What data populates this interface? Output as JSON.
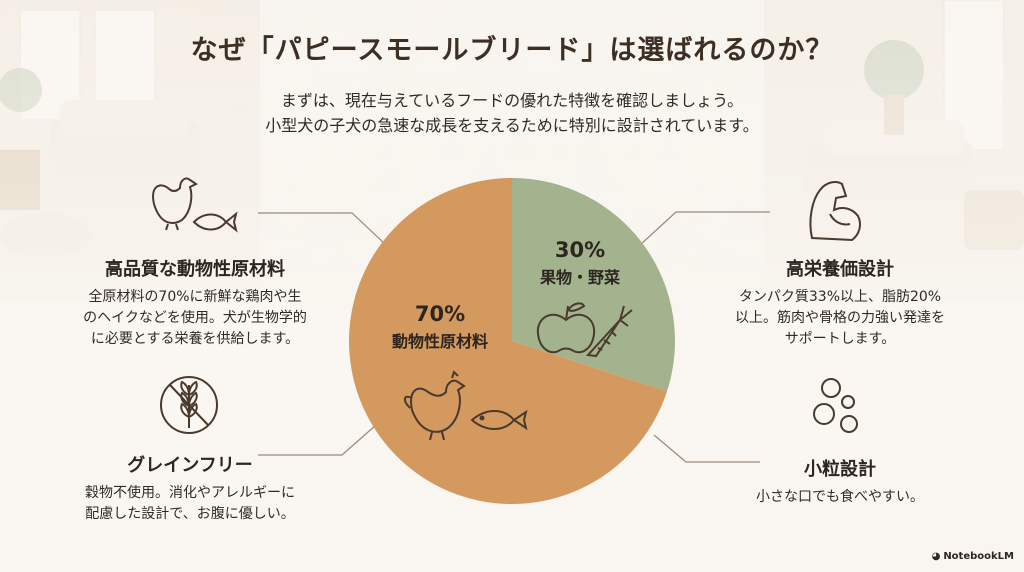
{
  "title": "なぜ「パピースモールブリード」は選ばれるのか？",
  "subtitle": {
    "line1": "まずは、現在与えているフードの優れた特徴を確認しましょう。",
    "line2": "小型犬の子犬の急速な成長を支えるために特別に設計されています。"
  },
  "chart_data": {
    "type": "pie",
    "slices": [
      {
        "label": "果物・野菜",
        "percent_label": "30%",
        "value": 30,
        "color": "#a3b38e"
      },
      {
        "label": "動物性原材料",
        "percent_label": "70%",
        "value": 70,
        "color": "#d4995e"
      }
    ]
  },
  "features": {
    "animal": {
      "heading": "高品質な動物性原材料",
      "line1": "全原材料の70%に新鮮な鶏肉や生",
      "line2": "のヘイクなどを使用。犬が生物学的",
      "line3": "に必要とする栄養を供給します。",
      "icons": [
        "chicken-icon",
        "fish-icon"
      ]
    },
    "grainfree": {
      "heading": "グレインフリー",
      "line1": "穀物不使用。消化やアレルギーに",
      "line2": "配慮した設計で、お腹に優しい。",
      "icon": "no-grain-icon"
    },
    "nutrition": {
      "heading": "高栄養価設計",
      "line1": "タンパク質33%以上、脂肪20%",
      "line2": "以上。筋肉や骨格の力強い発達を",
      "line3": "サポートします。",
      "icon": "muscle-arm-icon"
    },
    "kibble": {
      "heading": "小粒設計",
      "line1": "小さな口でも食べやすい。",
      "icon": "small-kibble-icon"
    }
  },
  "brand": "NotebookLM",
  "colors": {
    "title": "#3e2f25",
    "animal_slice": "#d4995e",
    "fruit_slice": "#a3b38e",
    "icon_stroke": "#4a3a2e"
  }
}
